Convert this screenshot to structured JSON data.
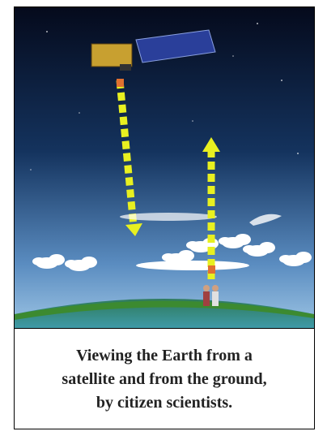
{
  "caption": {
    "lines": [
      "Viewing the Earth from a",
      "satellite and from the ground,",
      "by citizen scientists."
    ]
  }
}
